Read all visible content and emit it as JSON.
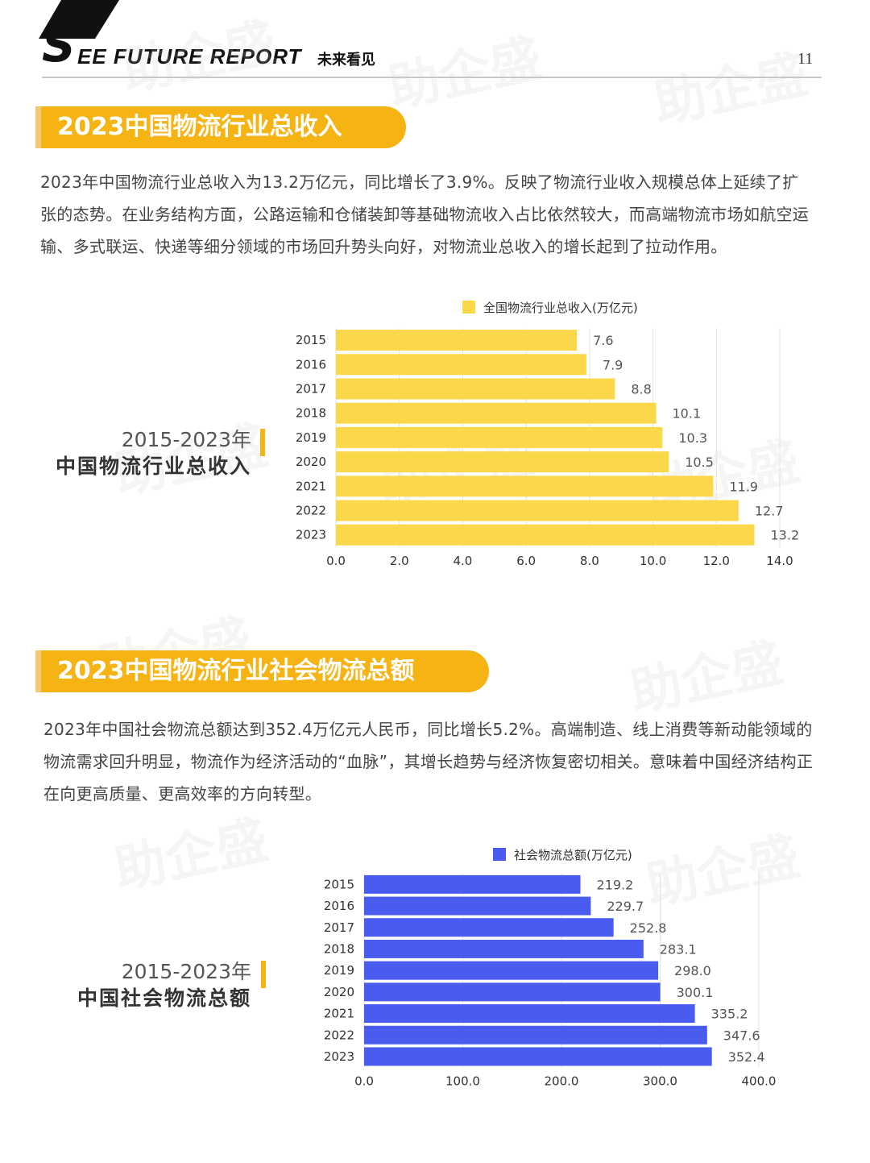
{
  "header": {
    "logo_letter": "S",
    "title": "EE FUTURE REPORT",
    "subtitle": "未来看见",
    "page_number": "11"
  },
  "section1": {
    "heading": "2023中国物流行业总收入",
    "paragraph": "2023年中国物流行业总收入为13.2万亿元，同比增长了3.9%。反映了物流行业收入规模总体上延续了扩张的态势。在业务结构方面，公路运输和仓储装卸等基础物流收入占比依然较大，而高端物流市场如航空运输、多式联运、快递等细分领域的市场回升势头向好，对物流业总收入的增长起到了拉动作用。",
    "side_years": "2015-2023年",
    "side_name": "中国物流行业总收入"
  },
  "section2": {
    "heading": "2023中国物流行业社会物流总额",
    "paragraph": "2023年中国社会物流总额达到352.4万亿元人民币，同比增长5.2%。高端制造、线上消费等新动能领域的物流需求回升明显，物流作为经济活动的“血脉”，其增长趋势与经济恢复密切相关。意味着中国经济结构正在向更高质量、更高效率的方向转型。",
    "side_years": "2015-2023年",
    "side_name": "中国社会物流总额"
  },
  "watermark": "助企盛",
  "chart_data": [
    {
      "type": "bar",
      "orientation": "horizontal",
      "categories": [
        "2015",
        "2016",
        "2017",
        "2018",
        "2019",
        "2020",
        "2021",
        "2022",
        "2023"
      ],
      "series": [
        {
          "name": "全国物流行业总收入(万亿元)",
          "values": [
            7.6,
            7.9,
            8.8,
            10.1,
            10.3,
            10.5,
            11.9,
            12.7,
            13.2
          ],
          "color": "#fbd84a"
        }
      ],
      "data_labels": [
        "7.6",
        "7.9",
        "8.8",
        "10.1",
        "10.3",
        "10.5",
        "11.9",
        "12.7",
        "13.2"
      ],
      "xlim": [
        0,
        14
      ],
      "x_ticks": [
        "0.0",
        "2.0",
        "4.0",
        "6.0",
        "8.0",
        "10.0",
        "12.0",
        "14.0"
      ],
      "legend_position": "top",
      "grid": true
    },
    {
      "type": "bar",
      "orientation": "horizontal",
      "categories": [
        "2015",
        "2016",
        "2017",
        "2018",
        "2019",
        "2020",
        "2021",
        "2022",
        "2023"
      ],
      "series": [
        {
          "name": "社会物流总额(万亿元)",
          "values": [
            219.2,
            229.7,
            252.8,
            283.1,
            298.0,
            300.1,
            335.2,
            347.6,
            352.4
          ],
          "color": "#4a5cf0"
        }
      ],
      "data_labels": [
        "219.2",
        "229.7",
        "252.8",
        "283.1",
        "298.0",
        "300.1",
        "335.2",
        "347.6",
        "352.4"
      ],
      "xlim": [
        0,
        400
      ],
      "x_ticks": [
        "0.0",
        "100.0",
        "200.0",
        "300.0",
        "400.0"
      ],
      "legend_position": "top",
      "grid": true
    }
  ]
}
